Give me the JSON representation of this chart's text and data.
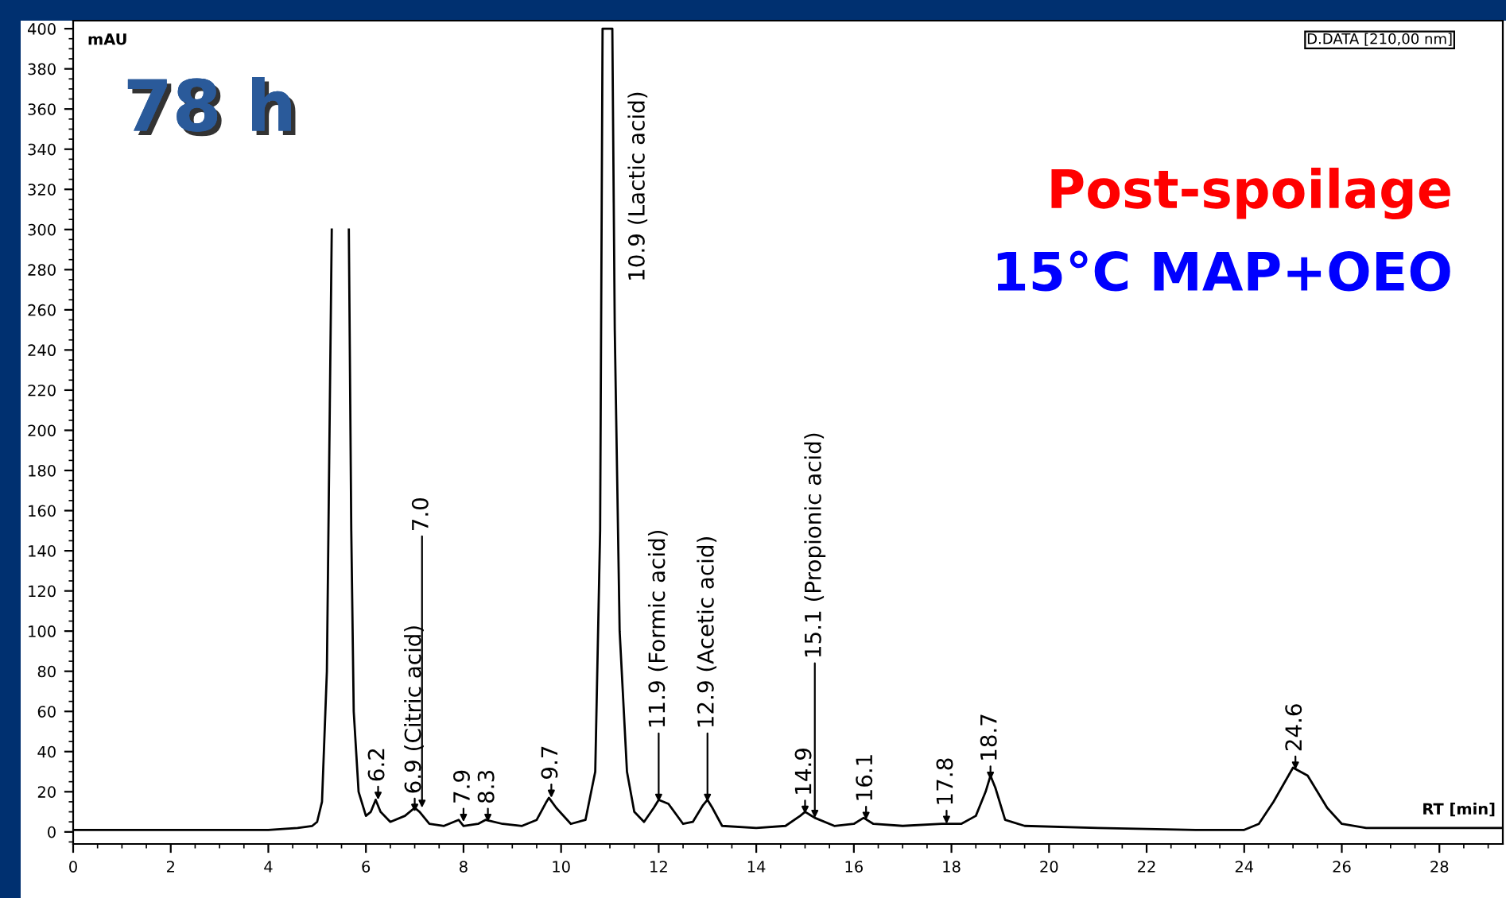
{
  "chart_data": {
    "type": "line",
    "xlabel": "RT [min]",
    "ylabel": "mAU",
    "x": [
      0,
      2,
      4,
      4.6,
      4.9,
      5.0,
      5.1,
      5.2,
      5.3,
      5.35,
      5.6,
      5.65,
      5.7,
      5.75,
      5.85,
      6.0,
      6.1,
      6.2,
      6.3,
      6.5,
      6.8,
      7.0,
      7.1,
      7.3,
      7.6,
      7.9,
      8.0,
      8.3,
      8.45,
      8.8,
      9.2,
      9.5,
      9.7,
      9.75,
      9.9,
      10.2,
      10.5,
      10.7,
      10.8,
      10.85,
      11.05,
      11.1,
      11.2,
      11.35,
      11.5,
      11.7,
      11.9,
      12.0,
      12.2,
      12.5,
      12.7,
      12.9,
      13.0,
      13.1,
      13.3,
      14.0,
      14.6,
      14.9,
      15.0,
      15.2,
      15.6,
      16.0,
      16.2,
      16.4,
      17.0,
      17.8,
      18.2,
      18.5,
      18.7,
      18.8,
      18.9,
      19.1,
      19.5,
      21,
      23,
      24.0,
      24.3,
      24.6,
      25.0,
      25.3,
      25.7,
      26.0,
      26.5,
      28,
      29.3
    ],
    "series": [
      {
        "color": "#000000",
        "values": [
          1,
          1,
          1,
          2,
          3,
          5,
          15,
          80,
          300,
          null,
          null,
          300,
          150,
          60,
          20,
          8,
          10,
          16,
          10,
          5,
          8,
          12,
          10,
          4,
          3,
          6,
          3,
          4,
          6,
          4,
          3,
          6,
          15,
          17,
          12,
          4,
          6,
          30,
          150,
          400,
          400,
          250,
          100,
          30,
          10,
          5,
          12,
          16,
          14,
          4,
          5,
          13,
          16,
          12,
          3,
          2,
          3,
          8,
          10,
          7,
          3,
          4,
          7,
          4,
          3,
          4,
          4,
          8,
          20,
          28,
          22,
          6,
          3,
          2,
          1,
          1,
          4,
          15,
          32,
          28,
          12,
          4,
          2,
          2,
          2
        ]
      }
    ],
    "xlim": [
      0,
      29.3
    ],
    "ylim": [
      -6,
      404
    ],
    "xticks": [
      0,
      2,
      4,
      6,
      8,
      10,
      12,
      14,
      16,
      18,
      20,
      22,
      24,
      26,
      28
    ],
    "yticks": [
      0,
      20,
      40,
      60,
      80,
      100,
      120,
      140,
      160,
      180,
      200,
      220,
      240,
      260,
      280,
      300,
      320,
      340,
      360,
      380,
      400
    ],
    "grid": false,
    "legend": false,
    "marker": "none",
    "line_style": "solid",
    "annotations": [
      {
        "text": "6.2",
        "x": 6.25,
        "y": 16
      },
      {
        "text": "6.9 (Citric acid)",
        "x": 7.0,
        "y": 10
      },
      {
        "text": "7.0",
        "x": 7.15,
        "y": 12
      },
      {
        "text": "7.9",
        "x": 8.0,
        "y": 5
      },
      {
        "text": "8.3",
        "x": 8.5,
        "y": 5
      },
      {
        "text": "9.7",
        "x": 9.8,
        "y": 17
      },
      {
        "text": "10.9 (Lactic acid)",
        "x": 10.95,
        "y": 320
      },
      {
        "text": "11.9 (Formic acid)",
        "x": 12.0,
        "y": 15
      },
      {
        "text": "12.9 (Acetic acid)",
        "x": 13.0,
        "y": 15
      },
      {
        "text": "14.9",
        "x": 15.0,
        "y": 9
      },
      {
        "text": "15.1 (Propionic acid)",
        "x": 15.2,
        "y": 7
      },
      {
        "text": "16.1",
        "x": 16.25,
        "y": 6
      },
      {
        "text": "17.8",
        "x": 17.9,
        "y": 4
      },
      {
        "text": "18.7",
        "x": 18.8,
        "y": 26
      },
      {
        "text": "24.6",
        "x": 25.05,
        "y": 31
      },
      "78 h",
      "Post-spoilage",
      "15°C MAP+OEO",
      "D.DATA [210,00 nm]"
    ]
  }
}
